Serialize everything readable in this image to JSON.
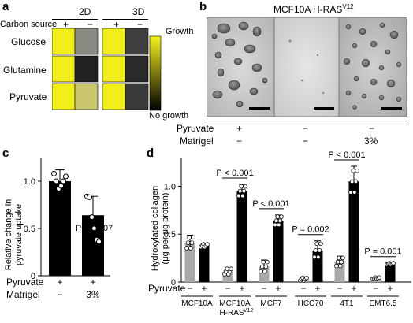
{
  "panel_labels": {
    "a": "a",
    "b": "b",
    "c": "c",
    "d": "d"
  },
  "panel_a": {
    "col_2d": "2D",
    "col_3d": "3D",
    "carbon_label": "Carbon source",
    "plus": "+",
    "minus": "−",
    "rows": [
      {
        "name": "Glucose",
        "cells": [
          "#f2ee1a",
          "#8a8a82",
          "#f2ee1a",
          "#3e3e3e"
        ]
      },
      {
        "name": "Glutamine",
        "cells": [
          "#f2ee1a",
          "#222222",
          "#f2ee1a",
          "#2a2a2a"
        ]
      },
      {
        "name": "Pyruvate",
        "cells": [
          "#f2ee1a",
          "#c9c66e",
          "#f2ee1a",
          "#3a3a3a"
        ]
      }
    ],
    "scale_top": "Growth",
    "scale_bottom": "No growth",
    "scale_colors": {
      "high": "#f5f21a",
      "low": "#000000"
    }
  },
  "panel_b": {
    "title": "MCF10A H-RAS",
    "title_sup": "V12",
    "pyruvate_label": "Pyruvate",
    "matrigel_label": "Matrigel",
    "pyruvate_values": [
      "+",
      "−",
      "−"
    ],
    "matrigel_values": [
      "−",
      "−",
      "3%"
    ]
  },
  "panel_c": {
    "ylabel_line1": "Relative change in",
    "ylabel_line2": "pyruvate uptake",
    "yticks": [
      "0",
      "0.5",
      "1.0"
    ],
    "pvalue_label": "P = 0.007",
    "pyruvate_label": "Pyruvate",
    "matrigel_label": "Matrigel",
    "pyruvate_values": [
      "+",
      "+"
    ],
    "matrigel_values": [
      "−",
      "3%"
    ],
    "bar_color": "#000000"
  },
  "panel_d": {
    "ylabel_line1": "Hydroxylated collagen",
    "ylabel_line2": "(μg per μg protein)",
    "yticks": [
      "0",
      "0.5",
      "1.0"
    ],
    "pyruvate_label": "Pyruvate",
    "pyruvate_values": [
      "−",
      "+"
    ],
    "cell_lines": [
      {
        "name": "MCF10A",
        "name2": "",
        "pvalue": ""
      },
      {
        "name": "MCF10A",
        "name2": "H-RAS",
        "name2_sup": "V12",
        "pvalue": "P < 0.001"
      },
      {
        "name": "MCF7",
        "name2": "",
        "pvalue": "P < 0.001"
      },
      {
        "name": "HCC70",
        "name2": "",
        "pvalue": "P = 0.002"
      },
      {
        "name": "4T1",
        "name2": "",
        "pvalue": "P < 0.001"
      },
      {
        "name": "EMT6.5",
        "name2": "",
        "pvalue": "P = 0.001"
      }
    ],
    "colors": {
      "minus": "#aaaaaa",
      "plus": "#000000"
    }
  },
  "chart_data": [
    {
      "type": "bar",
      "title": "",
      "xlabel": "",
      "ylabel": "Relative change in pyruvate uptake",
      "ylim": [
        0,
        1.25
      ],
      "categories": [
        "Pyruvate + / Matrigel −",
        "Pyruvate + / Matrigel 3%"
      ],
      "values": [
        1.0,
        0.64
      ],
      "errors": [
        0.12,
        0.2
      ],
      "points": [
        [
          1.08,
          1.0,
          0.92,
          0.95,
          1.0,
          1.05
        ],
        [
          0.84,
          0.83,
          0.62,
          0.5,
          0.38,
          0.36
        ]
      ],
      "annotations": [
        "P = 0.007"
      ],
      "grid": false
    },
    {
      "type": "bar",
      "title": "",
      "xlabel": "",
      "ylabel": "Hydroxylated collagen (μg per μg protein)",
      "ylim": [
        0,
        1.3
      ],
      "categories": [
        "MCF10A",
        "MCF10A H-RASV12",
        "MCF7",
        "HCC70",
        "4T1",
        "EMT6.5"
      ],
      "series": [
        {
          "name": "Pyruvate −",
          "values": [
            0.41,
            0.11,
            0.16,
            0.03,
            0.21,
            0.04
          ],
          "errors": [
            0.08,
            0.04,
            0.07,
            0.02,
            0.06,
            0.01
          ]
        },
        {
          "name": "Pyruvate +",
          "values": [
            0.38,
            0.95,
            0.64,
            0.33,
            1.05,
            0.19
          ],
          "errors": [
            0.02,
            0.07,
            0.06,
            0.1,
            0.16,
            0.01
          ]
        }
      ],
      "annotations": [
        "P < 0.001",
        "P < 0.001",
        "P = 0.002",
        "P < 0.001",
        "P = 0.001"
      ],
      "grid": false
    }
  ]
}
